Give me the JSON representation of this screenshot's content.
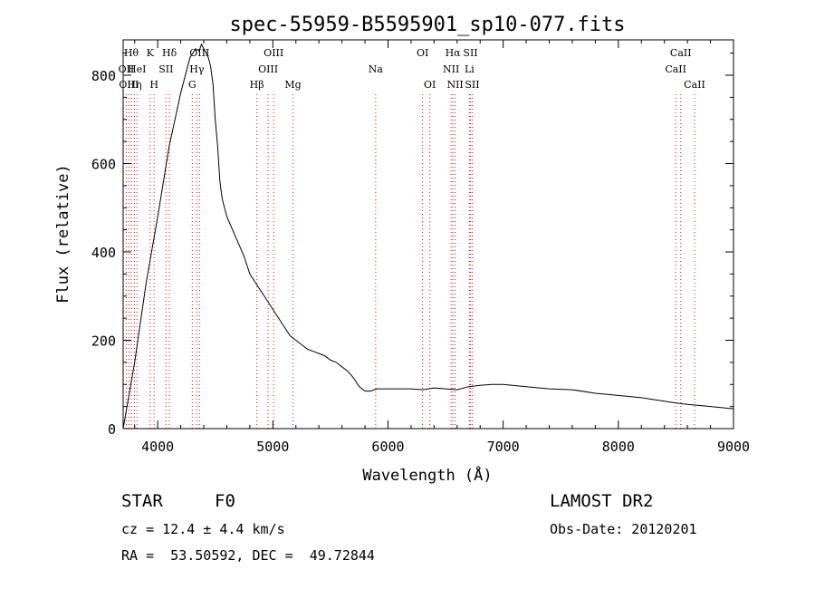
{
  "chart_data": {
    "type": "line",
    "title": "spec-55959-B5595901_sp10-077.fits",
    "xlabel": "Wavelength (Å)",
    "ylabel": "Flux (relative)",
    "xlim": [
      3700,
      9000
    ],
    "ylim": [
      0,
      880
    ],
    "x_ticks": [
      4000,
      5000,
      6000,
      7000,
      8000,
      9000
    ],
    "y_ticks": [
      0,
      200,
      400,
      600,
      800
    ],
    "grid": false,
    "line_color": "#000000",
    "line_marker_color": "#ff0000",
    "series": [
      {
        "x": [
          3700,
          3800,
          3900,
          4000,
          4100,
          4200,
          4280,
          4330,
          4360,
          4380,
          4400,
          4420,
          4440,
          4460,
          4480,
          4500,
          4520,
          4540,
          4560,
          4580,
          4600,
          4650,
          4700,
          4750,
          4800,
          4850,
          4900,
          4950,
          5000,
          5050,
          5100,
          5150,
          5200,
          5250,
          5300,
          5350,
          5400,
          5450,
          5500,
          5550,
          5600,
          5650,
          5700,
          5750,
          5800,
          5850,
          5900,
          6000,
          6100,
          6200,
          6300,
          6400,
          6500,
          6600,
          6700,
          6800,
          6900,
          7000,
          7200,
          7400,
          7600,
          7800,
          8000,
          8200,
          8400,
          8500,
          8600,
          8800,
          9000
        ],
        "y": [
          0,
          150,
          330,
          480,
          640,
          760,
          840,
          860,
          855,
          870,
          860,
          850,
          840,
          820,
          780,
          700,
          640,
          560,
          520,
          500,
          480,
          450,
          420,
          390,
          350,
          330,
          310,
          290,
          270,
          250,
          230,
          210,
          200,
          190,
          180,
          175,
          170,
          165,
          155,
          150,
          140,
          130,
          115,
          95,
          85,
          85,
          90,
          90,
          90,
          90,
          88,
          92,
          90,
          88,
          95,
          98,
          100,
          100,
          95,
          90,
          88,
          80,
          75,
          70,
          62,
          58,
          55,
          50,
          45
        ]
      }
    ],
    "line_markers": [
      {
        "wavelength": 3727,
        "label": "OII",
        "row": 1
      },
      {
        "wavelength": 3750,
        "label": "OIII",
        "row": 2
      },
      {
        "wavelength": 3771,
        "label": "Hθ",
        "row": 0
      },
      {
        "wavelength": 3798,
        "label": "Hη",
        "row": 2
      },
      {
        "wavelength": 3820,
        "label": "HeI",
        "row": 1
      },
      {
        "wavelength": 3934,
        "label": "K",
        "row": 0
      },
      {
        "wavelength": 3969,
        "label": "H",
        "row": 2
      },
      {
        "wavelength": 4072,
        "label": "SII",
        "row": 1
      },
      {
        "wavelength": 4102,
        "label": "Hδ",
        "row": 0
      },
      {
        "wavelength": 4300,
        "label": "G",
        "row": 2
      },
      {
        "wavelength": 4340,
        "label": "Hγ",
        "row": 1
      },
      {
        "wavelength": 4363,
        "label": "OIII",
        "row": 0
      },
      {
        "wavelength": 4861,
        "label": "Hβ",
        "row": 2
      },
      {
        "wavelength": 4959,
        "label": "OIII",
        "row": 1
      },
      {
        "wavelength": 5007,
        "label": "OIII",
        "row": 0
      },
      {
        "wavelength": 5175,
        "label": "Mg",
        "row": 2
      },
      {
        "wavelength": 5893,
        "label": "Na",
        "row": 1
      },
      {
        "wavelength": 6300,
        "label": "OI",
        "row": 0
      },
      {
        "wavelength": 6363,
        "label": "OI",
        "row": 2
      },
      {
        "wavelength": 6548,
        "label": "NII",
        "row": 1
      },
      {
        "wavelength": 6563,
        "label": "Hα",
        "row": 0
      },
      {
        "wavelength": 6583,
        "label": "NII",
        "row": 2
      },
      {
        "wavelength": 6707,
        "label": "Li",
        "row": 1
      },
      {
        "wavelength": 6716,
        "label": "SII",
        "row": 0
      },
      {
        "wavelength": 6731,
        "label": "SII",
        "row": 2
      },
      {
        "wavelength": 8498,
        "label": "CaII",
        "row": 1
      },
      {
        "wavelength": 8542,
        "label": "CaII",
        "row": 0
      },
      {
        "wavelength": 8662,
        "label": "CaII",
        "row": 2
      }
    ]
  },
  "info": {
    "object_type": "STAR",
    "subclass": "F0",
    "survey": "LAMOST DR2",
    "cz_text": "cz = 12.4 ± 4.4 km/s",
    "obs_date_text": "Obs-Date: 20120201",
    "coords_text": "RA =  53.50592, DEC =  49.72844"
  }
}
